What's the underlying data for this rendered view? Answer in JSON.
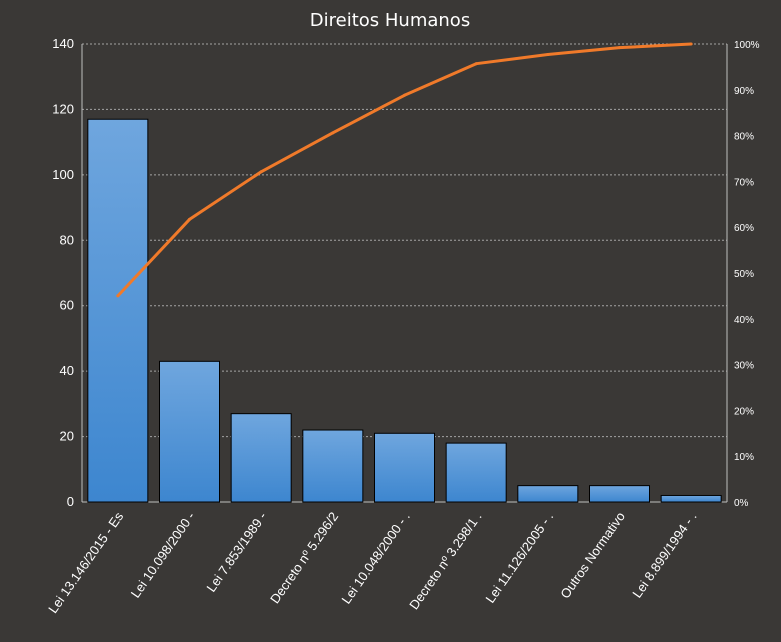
{
  "chart_data": {
    "type": "bar",
    "title": "Direitos Humanos",
    "categories": [
      "Lei 13.146/2015 - Es",
      "Lei 10.098/2000 -",
      "Lei 7.853/1989 -",
      "Decreto nº 5.296/2",
      "Lei 10.048/2000 - .",
      "Decreto nº 3.298/1 .",
      "Lei 11.126/2005 - .",
      "Outros Normativo",
      "Lei 8.899/1994 - ."
    ],
    "series": [
      {
        "type": "bar",
        "axis": "left",
        "values": [
          117,
          43,
          27,
          22,
          21,
          18,
          5,
          5,
          2
        ]
      },
      {
        "type": "line",
        "axis": "right",
        "values": [
          0.45,
          0.617,
          0.721,
          0.806,
          0.888,
          0.957,
          0.977,
          0.992,
          1.0
        ]
      }
    ],
    "y_left": {
      "lim": [
        0,
        140
      ],
      "ticks": [
        0,
        20,
        40,
        60,
        80,
        100,
        120,
        140
      ]
    },
    "y_right": {
      "lim": [
        0,
        1
      ],
      "ticks": [
        "0%",
        "10%",
        "20%",
        "30%",
        "40%",
        "50%",
        "60%",
        "70%",
        "80%",
        "90%",
        "100%"
      ]
    },
    "grid": "horizontal dashed",
    "legend": "none"
  },
  "colors": {
    "background": "#3a3836",
    "bar_top": "#6fa6de",
    "bar_bottom": "#3d86cf",
    "bar_stroke": "#000000",
    "line": "#f07a2a",
    "grid": "#bfbfbf",
    "text": "#ffffff"
  }
}
